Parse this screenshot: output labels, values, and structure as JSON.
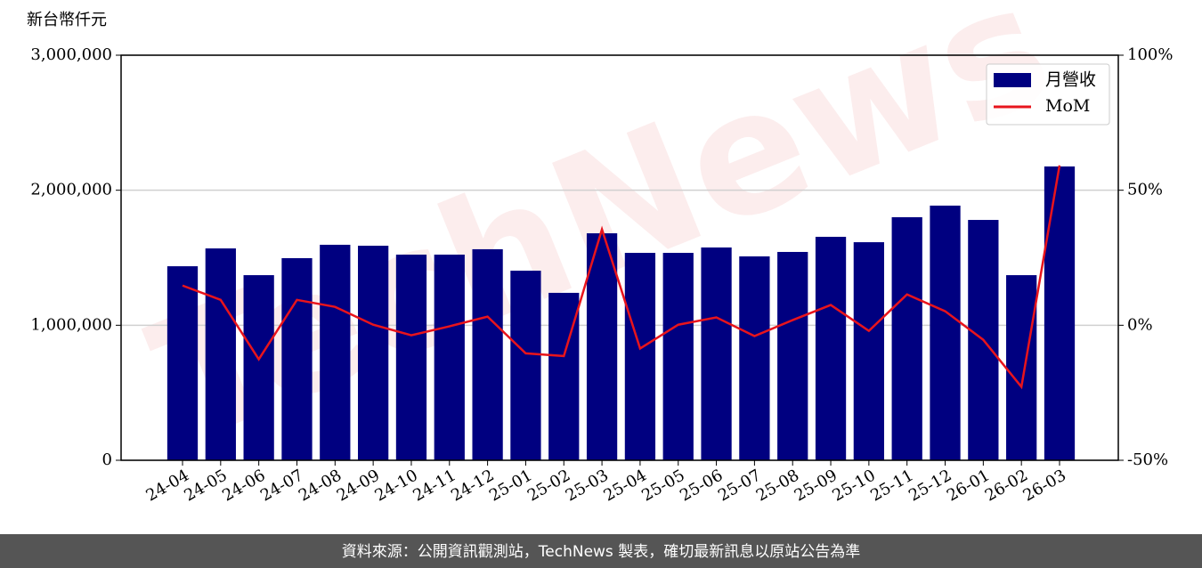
{
  "chart_data": {
    "type": "bar-line",
    "y_label": "新台幣仟元",
    "footer": "資料來源：公開資訊觀測站，TechNews 製表，確切最新訊息以原站公告為準",
    "watermark": "TechNews",
    "categories": [
      "24-04",
      "24-05",
      "24-06",
      "24-07",
      "24-08",
      "24-09",
      "24-10",
      "24-11",
      "24-12",
      "25-01",
      "25-02",
      "25-03",
      "25-04",
      "25-05",
      "25-06",
      "25-07",
      "25-08",
      "25-09",
      "25-10",
      "25-11",
      "25-12",
      "26-01",
      "26-02",
      "26-03"
    ],
    "series": [
      {
        "name": "月營收",
        "type": "bar",
        "color": "#000080",
        "values": [
          1437000,
          1569000,
          1371000,
          1497000,
          1596000,
          1589000,
          1523000,
          1523000,
          1563000,
          1404000,
          1240000,
          1681000,
          1536000,
          1536000,
          1576000,
          1510000,
          1543000,
          1655000,
          1615000,
          1800000,
          1886000,
          1780000,
          1371000,
          2176000
        ]
      },
      {
        "name": "MoM",
        "type": "line",
        "color": "#e8141c",
        "axis": "y2",
        "values": [
          14.7,
          9.4,
          -12.6,
          9.4,
          6.8,
          0.2,
          -3.7,
          -0.4,
          3.2,
          -10.4,
          -11.4,
          35.5,
          -8.6,
          0.2,
          2.9,
          -4.0,
          1.9,
          7.5,
          -2.1,
          11.4,
          5.2,
          -5.4,
          -22.8,
          59.2
        ]
      }
    ],
    "ylim": [
      0,
      3000000
    ],
    "yticks": [
      {
        "value": 0,
        "label": "0"
      },
      {
        "value": 1000000,
        "label": "1,000,000"
      },
      {
        "value": 2000000,
        "label": "2,000,000"
      },
      {
        "value": 3000000,
        "label": "3,000,000"
      }
    ],
    "y2lim": [
      -50,
      100
    ],
    "y2ticks": [
      {
        "value": -50,
        "label": "-50%"
      },
      {
        "value": 0,
        "label": "0%"
      },
      {
        "value": 50,
        "label": "50%"
      },
      {
        "value": 100,
        "label": "100%"
      }
    ],
    "grid": true,
    "legend": "upper right"
  }
}
